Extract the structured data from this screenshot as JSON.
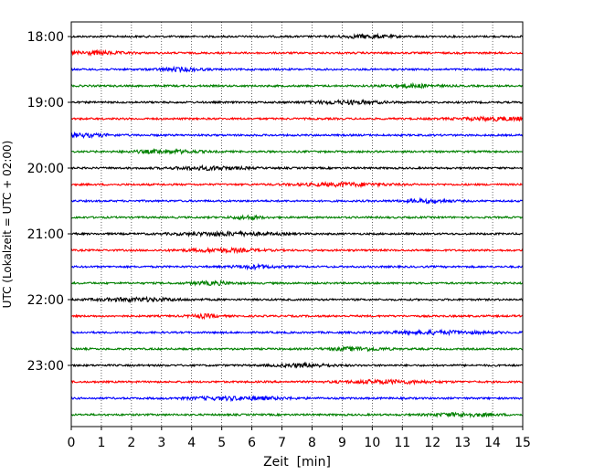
{
  "chart_data": {
    "type": "line",
    "title": "",
    "xlabel": "Zeit  [min]",
    "ylabel": "UTC (Lokalzeit = UTC + 02:00)",
    "xlim": [
      0,
      15
    ],
    "x_ticks": [
      "0",
      "1",
      "2",
      "3",
      "4",
      "5",
      "6",
      "7",
      "8",
      "9",
      "10",
      "11",
      "12",
      "13",
      "14",
      "15"
    ],
    "y_ticks": [
      "18:00",
      "19:00",
      "20:00",
      "21:00",
      "22:00",
      "23:00"
    ],
    "trace_start": "18:00",
    "trace_end": "23:45",
    "trace_interval_min": 15,
    "trace_colors": [
      "#000000",
      "#ff0000",
      "#0000ff",
      "#008000"
    ],
    "grid": "vertical dotted at each minute",
    "legend": "none"
  }
}
